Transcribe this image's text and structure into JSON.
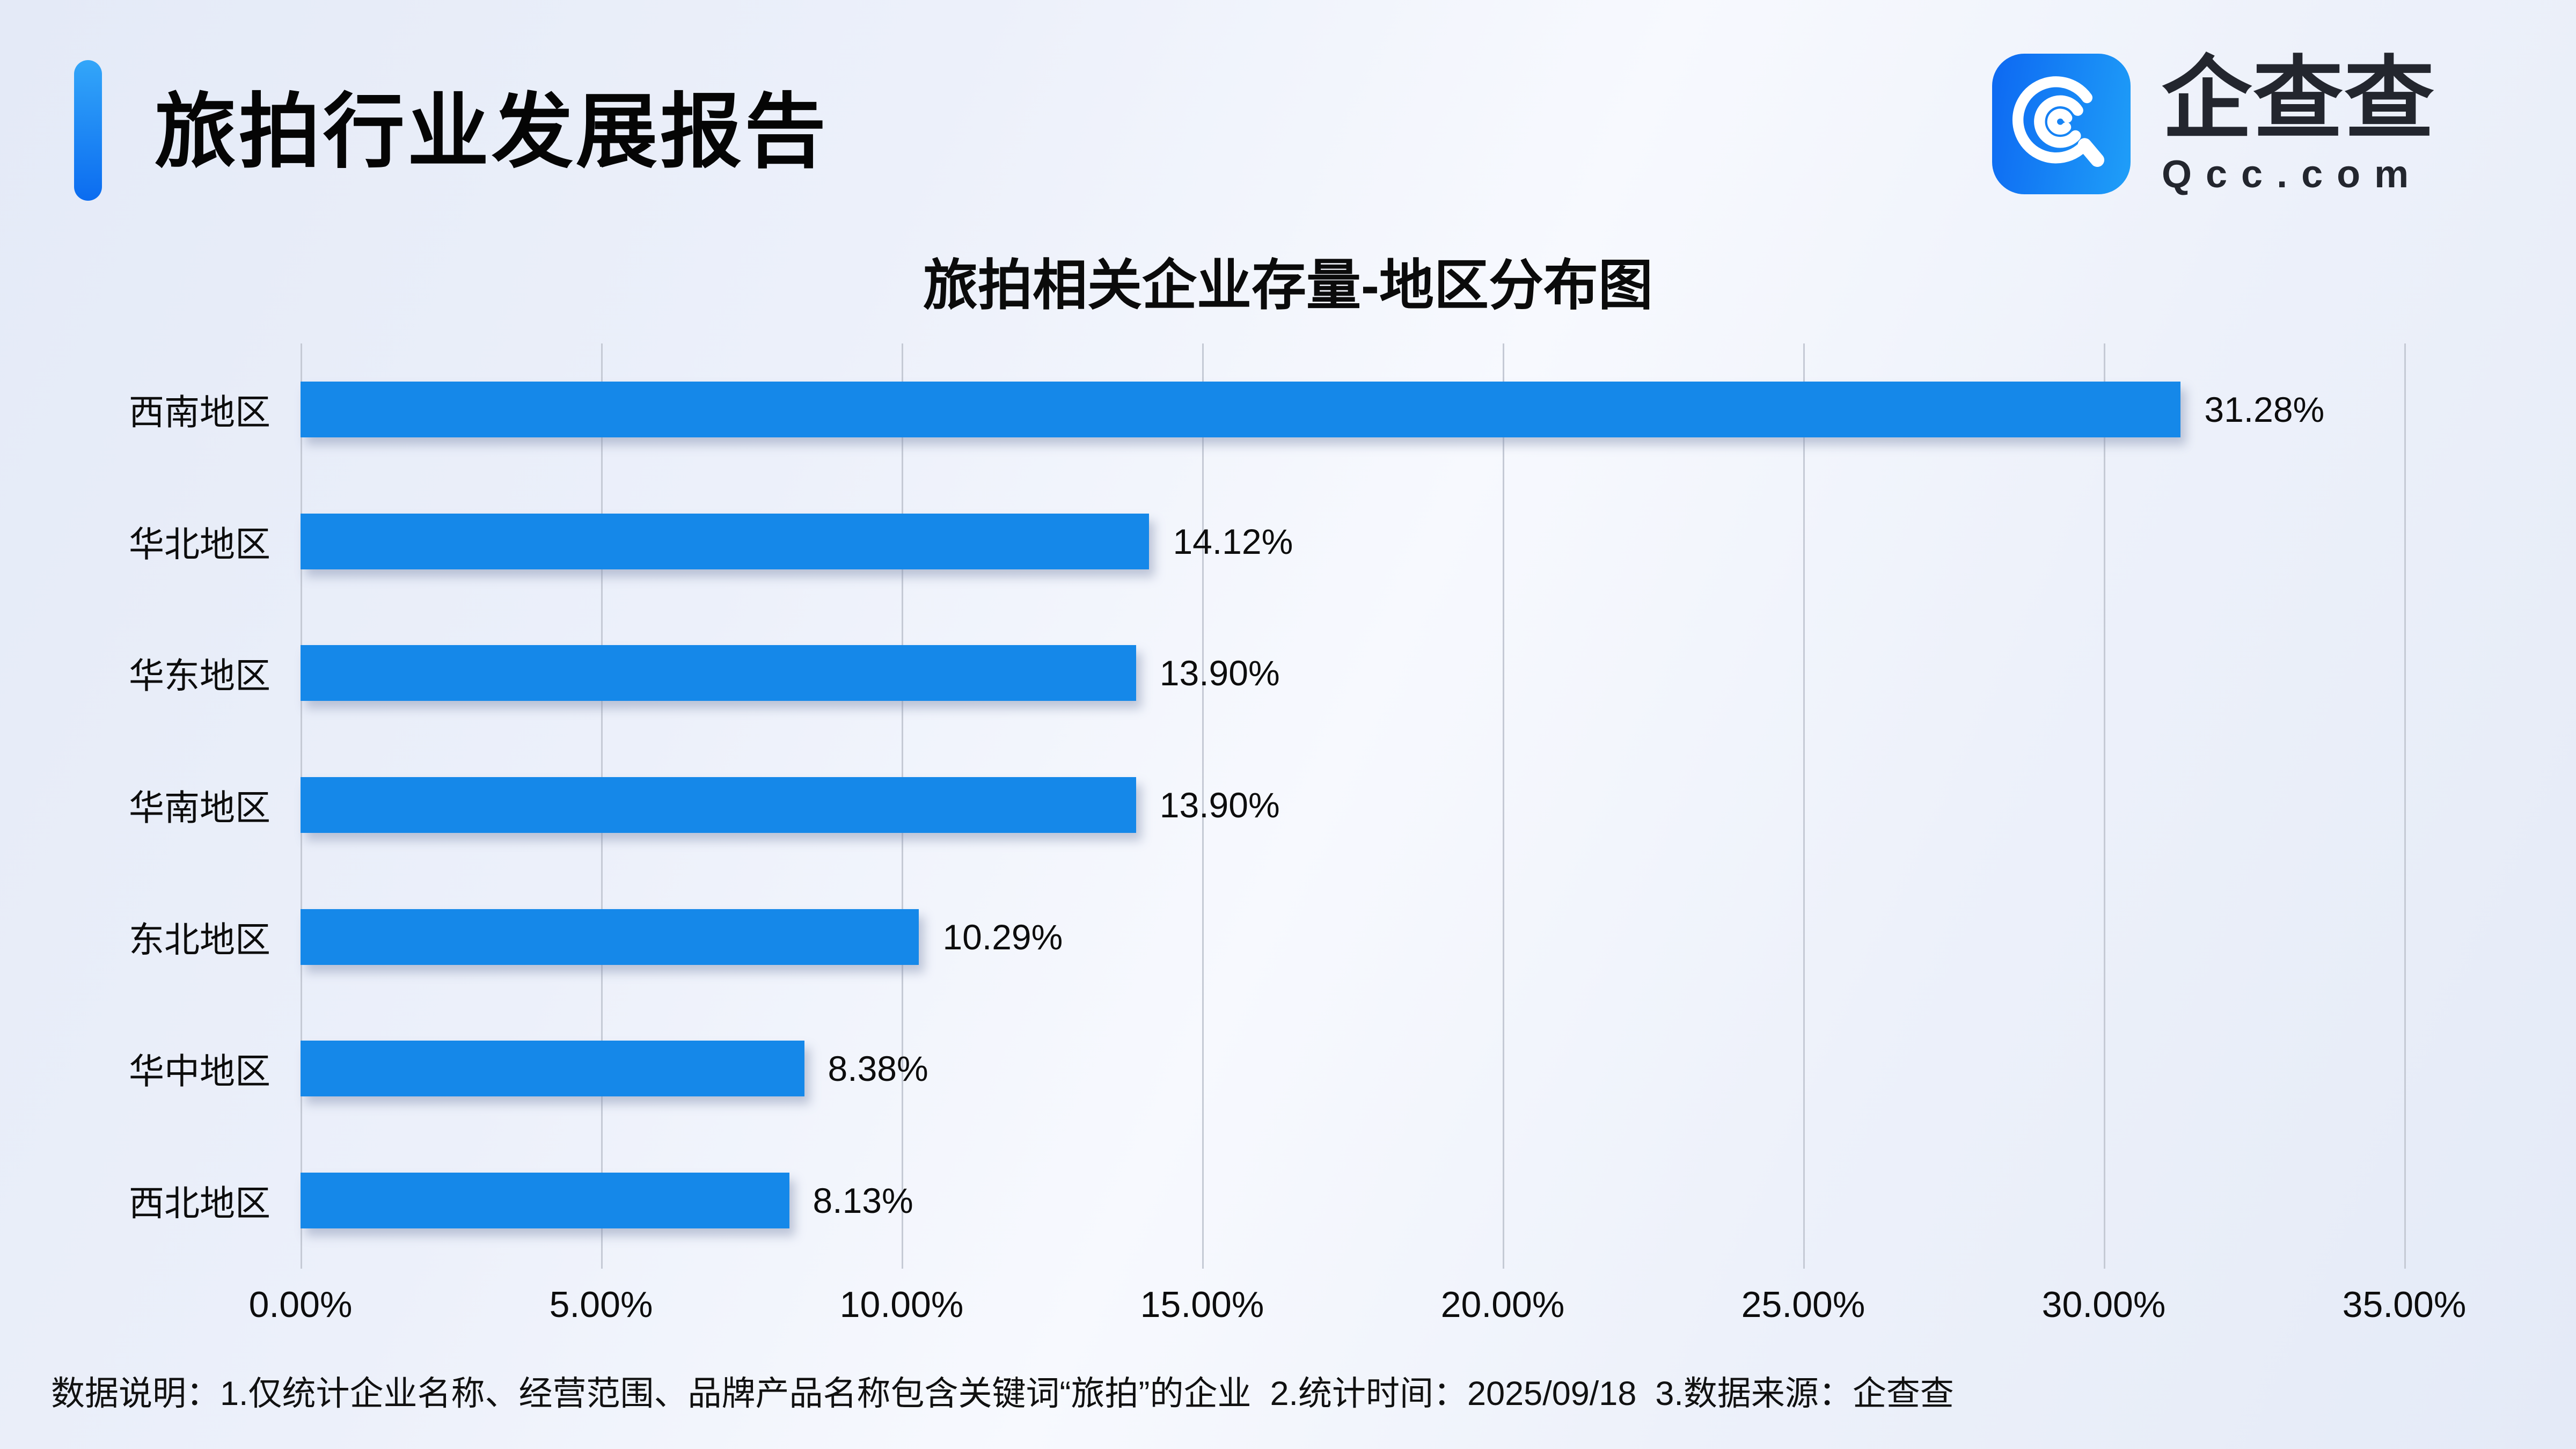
{
  "header": {
    "title": "旅拍行业发展报告",
    "accent_color": "#0d6ef0",
    "logo": {
      "brand_text": "企查查",
      "domain_text": "Qcc.com",
      "icon_color_start": "#0d68f2",
      "icon_color_end": "#1f9ff8"
    }
  },
  "chart_data": {
    "type": "bar",
    "orientation": "horizontal",
    "title": "旅拍相关企业存量-地区分布图",
    "categories": [
      "西南地区",
      "华北地区",
      "华东地区",
      "华南地区",
      "东北地区",
      "华中地区",
      "西北地区"
    ],
    "values": [
      31.28,
      14.12,
      13.9,
      13.9,
      10.29,
      8.38,
      8.13
    ],
    "value_labels": [
      "31.28%",
      "14.12%",
      "13.90%",
      "13.90%",
      "10.29%",
      "8.38%",
      "8.13%"
    ],
    "x_ticks": [
      "0.00%",
      "5.00%",
      "10.00%",
      "15.00%",
      "20.00%",
      "25.00%",
      "30.00%",
      "35.00%"
    ],
    "xlim": [
      0,
      35
    ],
    "bar_color": "#1588e9",
    "grid": true,
    "grid_color": "#c5cad5",
    "legend": false
  },
  "footer": {
    "note": "数据说明：1.仅统计企业名称、经营范围、品牌产品名称包含关键词“旅拍”的企业  2.统计时间：2025/09/18  3.数据来源：企查查"
  }
}
